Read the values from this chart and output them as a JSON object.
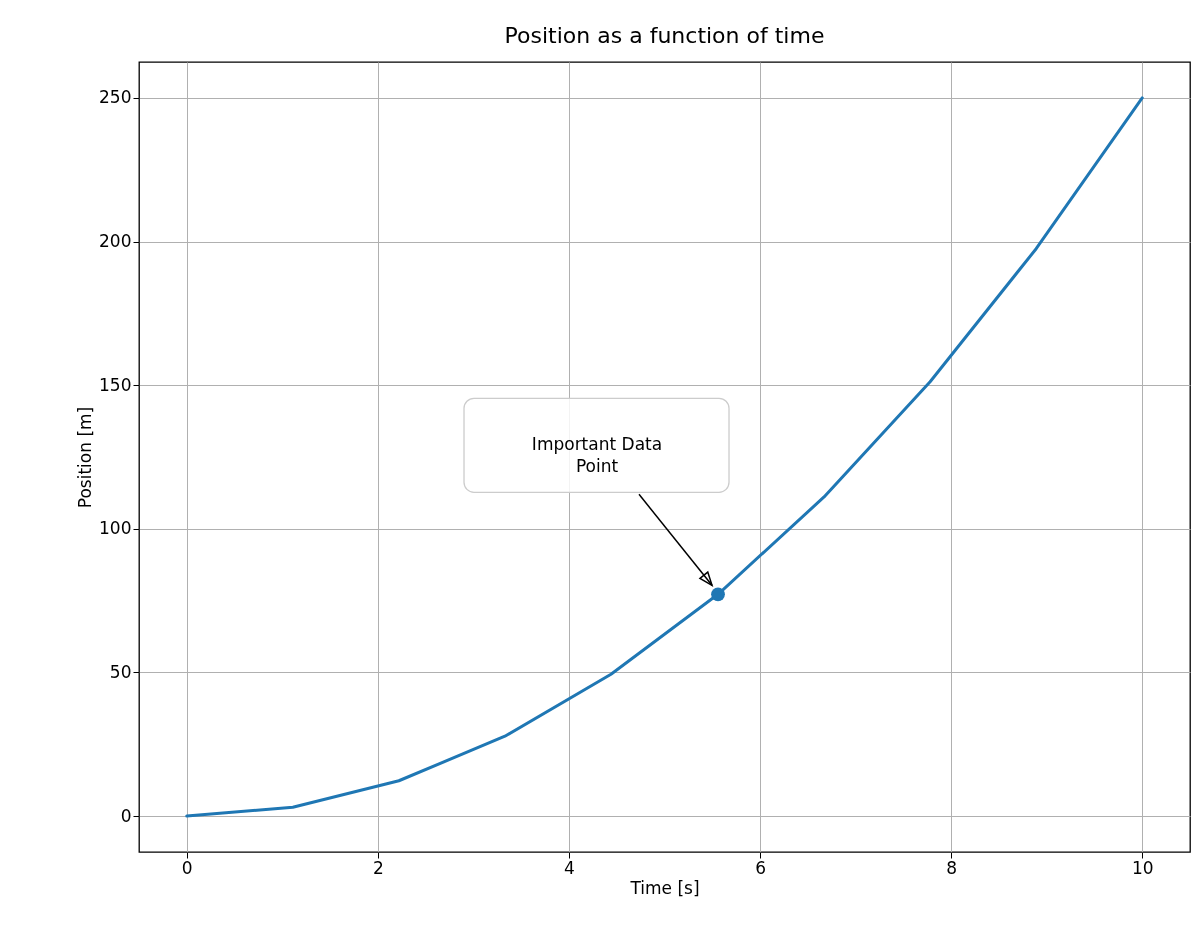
{
  "chart_data": {
    "type": "line",
    "title": "Position as a function of time",
    "xlabel": "Time [s]",
    "ylabel": "Position [m]",
    "xlim": [
      -0.5,
      10.5
    ],
    "ylim": [
      -12.5,
      262.5
    ],
    "xticks": [
      0,
      2,
      4,
      6,
      8,
      10
    ],
    "yticks": [
      0,
      50,
      100,
      150,
      200,
      250
    ],
    "grid": true,
    "series": [
      {
        "color": "#1f77b4",
        "marker": "none",
        "x": [
          0,
          1.11,
          2.22,
          3.33,
          4.44,
          5.56,
          6.67,
          7.78,
          8.89,
          10
        ],
        "values": [
          0,
          3.1,
          12.3,
          27.8,
          49.4,
          77.2,
          111.1,
          151.2,
          197.5,
          250
        ]
      },
      {
        "type": "scatter",
        "color": "#1f77b4",
        "marker": "circle",
        "x": [
          5.56
        ],
        "values": [
          77.2
        ]
      }
    ],
    "annotations": [
      "Important Data\nPoint"
    ]
  }
}
